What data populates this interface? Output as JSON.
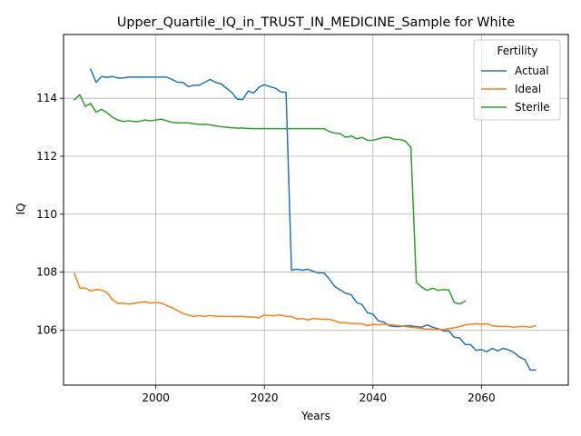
{
  "chart_data": {
    "type": "line",
    "title": "Upper_Quartile_IQ_in_TRUST_IN_MEDICINE_Sample for White",
    "xlabel": "Years",
    "ylabel": "IQ",
    "xlim": [
      1983,
      2076
    ],
    "ylim": [
      104.1,
      116.2
    ],
    "xticks": [
      2000,
      2020,
      2040,
      2060
    ],
    "yticks": [
      106,
      108,
      110,
      112,
      114
    ],
    "grid": true,
    "legend": {
      "title": "Fertility",
      "placement": "top-right"
    },
    "series": [
      {
        "name": "Actual",
        "color": "#1f77b4",
        "x": [
          1988,
          1989,
          1990,
          1991,
          1992,
          1993,
          1994,
          1995,
          1996,
          1997,
          1998,
          1999,
          2000,
          2001,
          2002,
          2003,
          2004,
          2005,
          2006,
          2007,
          2008,
          2009,
          2010,
          2011,
          2012,
          2013,
          2014,
          2015,
          2016,
          2017,
          2018,
          2019,
          2020,
          2021,
          2022,
          2023,
          2024,
          2025,
          2026,
          2027,
          2028,
          2029,
          2030,
          2031,
          2032,
          2033,
          2034,
          2035,
          2036,
          2037,
          2038,
          2039,
          2040,
          2041,
          2042,
          2043,
          2044,
          2045,
          2046,
          2047,
          2048,
          2049,
          2050,
          2051,
          2052,
          2053,
          2054,
          2055,
          2056,
          2057,
          2058,
          2059,
          2060,
          2061,
          2062,
          2063,
          2064,
          2065,
          2066,
          2067,
          2068,
          2069,
          2070
        ],
        "values": [
          115.0,
          114.55,
          114.75,
          114.72,
          114.75,
          114.7,
          114.7,
          114.73,
          114.73,
          114.73,
          114.73,
          114.73,
          114.73,
          114.73,
          114.73,
          114.65,
          114.55,
          114.55,
          114.4,
          114.45,
          114.45,
          114.55,
          114.65,
          114.55,
          114.5,
          114.35,
          114.2,
          113.97,
          113.95,
          114.25,
          114.18,
          114.38,
          114.47,
          114.4,
          114.35,
          114.22,
          114.2,
          108.07,
          108.1,
          108.07,
          108.1,
          108.03,
          107.97,
          107.97,
          107.75,
          107.5,
          107.38,
          107.27,
          107.22,
          106.95,
          106.88,
          106.6,
          106.55,
          106.32,
          106.28,
          106.15,
          106.12,
          106.12,
          106.15,
          106.15,
          106.12,
          106.1,
          106.18,
          106.1,
          106.05,
          105.97,
          105.97,
          105.75,
          105.73,
          105.5,
          105.5,
          105.3,
          105.33,
          105.25,
          105.37,
          105.28,
          105.37,
          105.32,
          105.22,
          105.07,
          104.98,
          104.62,
          104.62
        ]
      },
      {
        "name": "Ideal",
        "color": "#ff7f0e",
        "x": [
          1985,
          1986,
          1987,
          1988,
          1989,
          1990,
          1991,
          1992,
          1993,
          1994,
          1995,
          1996,
          1997,
          1998,
          1999,
          2000,
          2001,
          2002,
          2003,
          2004,
          2005,
          2006,
          2007,
          2008,
          2009,
          2010,
          2011,
          2012,
          2013,
          2014,
          2015,
          2016,
          2017,
          2018,
          2019,
          2020,
          2021,
          2022,
          2023,
          2024,
          2025,
          2026,
          2027,
          2028,
          2029,
          2030,
          2031,
          2032,
          2033,
          2034,
          2035,
          2036,
          2037,
          2038,
          2039,
          2040,
          2041,
          2042,
          2043,
          2044,
          2045,
          2046,
          2047,
          2048,
          2049,
          2050,
          2051,
          2052,
          2053,
          2054,
          2055,
          2056,
          2057,
          2058,
          2059,
          2060,
          2061,
          2062,
          2063,
          2064,
          2065,
          2066,
          2067,
          2068,
          2069,
          2070
        ],
        "values": [
          107.95,
          107.45,
          107.45,
          107.35,
          107.4,
          107.38,
          107.3,
          107.05,
          106.92,
          106.93,
          106.9,
          106.92,
          106.95,
          106.98,
          106.93,
          106.95,
          106.93,
          106.85,
          106.77,
          106.67,
          106.57,
          106.52,
          106.47,
          106.5,
          106.47,
          106.5,
          106.48,
          106.48,
          106.47,
          106.47,
          106.47,
          106.47,
          106.45,
          106.45,
          106.42,
          106.52,
          106.5,
          106.5,
          106.52,
          106.47,
          106.47,
          106.38,
          106.4,
          106.35,
          106.4,
          106.38,
          106.37,
          106.37,
          106.32,
          106.25,
          106.25,
          106.23,
          106.22,
          106.22,
          106.15,
          106.2,
          106.18,
          106.2,
          106.18,
          106.17,
          106.15,
          106.12,
          106.1,
          106.08,
          106.05,
          106.03,
          106.03,
          106.02,
          106.02,
          106.05,
          106.08,
          106.12,
          106.18,
          106.2,
          106.22,
          106.2,
          106.22,
          106.15,
          106.13,
          106.12,
          106.12,
          106.1,
          106.12,
          106.12,
          106.1,
          106.15
        ]
      },
      {
        "name": "Sterile",
        "color": "#2ca02c",
        "x": [
          1985,
          1986,
          1987,
          1988,
          1989,
          1990,
          1991,
          1992,
          1993,
          1994,
          1995,
          1996,
          1997,
          1998,
          1999,
          2000,
          2001,
          2002,
          2003,
          2004,
          2005,
          2006,
          2007,
          2008,
          2009,
          2010,
          2011,
          2012,
          2013,
          2014,
          2015,
          2016,
          2017,
          2018,
          2019,
          2020,
          2021,
          2022,
          2023,
          2024,
          2025,
          2026,
          2027,
          2028,
          2029,
          2030,
          2031,
          2032,
          2033,
          2034,
          2035,
          2036,
          2037,
          2038,
          2039,
          2040,
          2041,
          2042,
          2043,
          2044,
          2045,
          2046,
          2047,
          2048,
          2049,
          2050,
          2051,
          2052,
          2053,
          2054,
          2055,
          2056,
          2057
        ],
        "values": [
          113.95,
          114.12,
          113.72,
          113.82,
          113.52,
          113.62,
          113.5,
          113.35,
          113.25,
          113.2,
          113.22,
          113.2,
          113.2,
          113.25,
          113.22,
          113.25,
          113.28,
          113.22,
          113.17,
          113.15,
          113.15,
          113.15,
          113.12,
          113.1,
          113.1,
          113.08,
          113.05,
          113.02,
          113.0,
          112.98,
          112.97,
          112.97,
          112.96,
          112.95,
          112.95,
          112.95,
          112.95,
          112.95,
          112.95,
          112.95,
          112.95,
          112.95,
          112.95,
          112.95,
          112.95,
          112.95,
          112.95,
          112.85,
          112.8,
          112.78,
          112.65,
          112.7,
          112.6,
          112.65,
          112.55,
          112.55,
          112.6,
          112.65,
          112.65,
          112.58,
          112.58,
          112.52,
          112.3,
          107.65,
          107.48,
          107.37,
          107.45,
          107.37,
          107.4,
          107.38,
          106.95,
          106.9,
          107.0
        ]
      }
    ]
  }
}
